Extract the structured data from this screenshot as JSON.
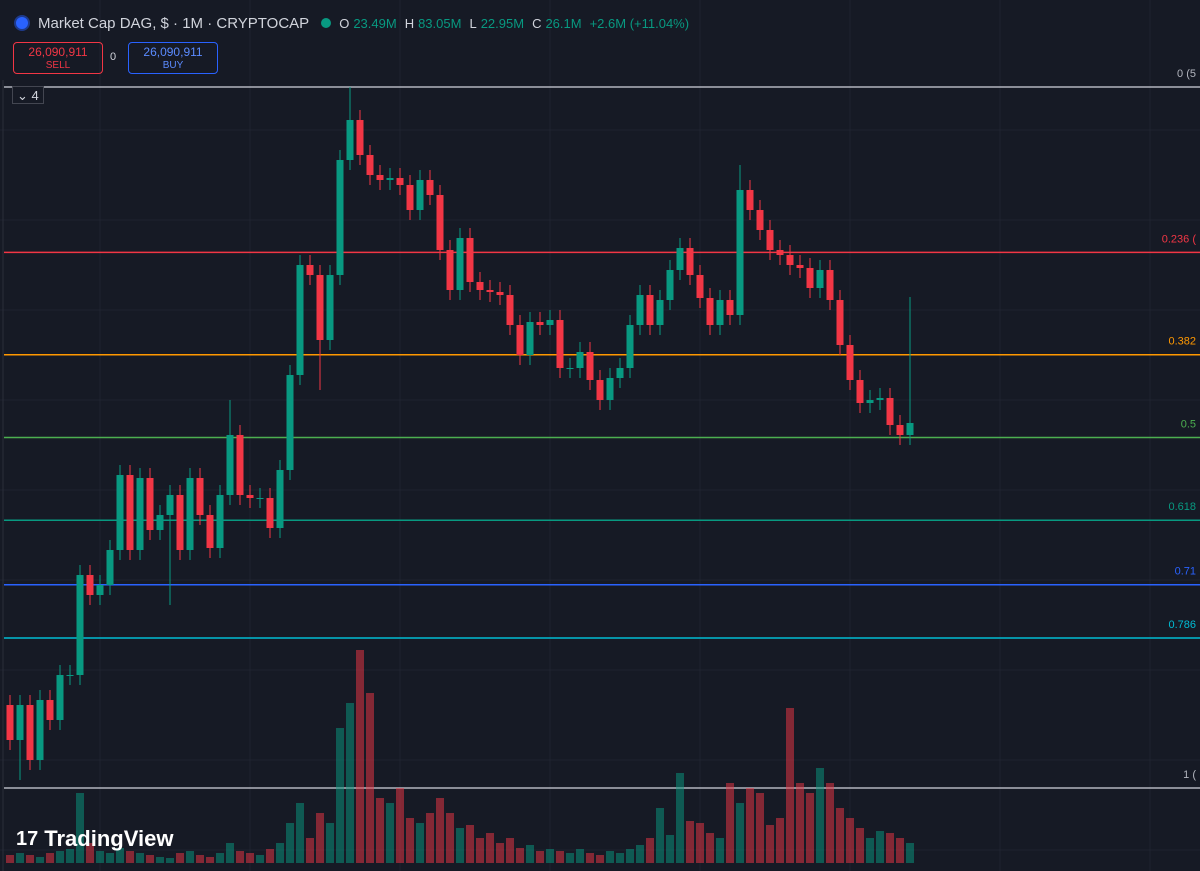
{
  "header": {
    "symbol": "Market Cap DAG, $ · 1M · CRYPTOCAP",
    "o_label": "O",
    "o": "23.49M",
    "h_label": "H",
    "h": "83.05M",
    "l_label": "L",
    "l": "22.95M",
    "c_label": "C",
    "c": "26.1M",
    "change": "+2.6M (+11.04%)"
  },
  "trade": {
    "sell_price": "26,090,911",
    "sell": "SELL",
    "spread": "0",
    "buy_price": "26,090,911",
    "buy": "BUY"
  },
  "indicators_count": "4",
  "logo": "TradingView",
  "chart_data": {
    "type": "candlestick",
    "ylim": [
      0,
      701
    ],
    "volume_lim": [
      0,
      220
    ],
    "up_color": "#089981",
    "down_color": "#f23645",
    "open": [
      83,
      48,
      83,
      28,
      88,
      68,
      113,
      113,
      213,
      193,
      203,
      238,
      313,
      238,
      310,
      258,
      273,
      293,
      238,
      310,
      273,
      240,
      293,
      353,
      293,
      290,
      290,
      260,
      318,
      413,
      523,
      513,
      448,
      513,
      628,
      668,
      633,
      613,
      608,
      610,
      603,
      578,
      608,
      593,
      538,
      498,
      550,
      506,
      498,
      496,
      493,
      463,
      433,
      466,
      463,
      468,
      420,
      420,
      436,
      408,
      388,
      410,
      420,
      463,
      493,
      463,
      488,
      518,
      540,
      513,
      490,
      463,
      488,
      473,
      598,
      578,
      558,
      538,
      533,
      523,
      520,
      500,
      518,
      488,
      443,
      408,
      385,
      388,
      390,
      363,
      353
    ],
    "high": [
      93,
      93,
      93,
      98,
      98,
      123,
      123,
      223,
      223,
      213,
      248,
      323,
      323,
      320,
      320,
      283,
      303,
      303,
      320,
      320,
      283,
      303,
      388,
      363,
      303,
      300,
      300,
      328,
      423,
      533,
      533,
      523,
      523,
      638,
      701,
      678,
      643,
      623,
      620,
      620,
      613,
      618,
      618,
      603,
      548,
      560,
      560,
      516,
      508,
      506,
      503,
      473,
      476,
      476,
      478,
      478,
      430,
      446,
      446,
      418,
      420,
      430,
      473,
      503,
      503,
      498,
      528,
      550,
      550,
      523,
      500,
      498,
      498,
      623,
      608,
      588,
      568,
      548,
      543,
      533,
      530,
      528,
      528,
      498,
      453,
      418,
      398,
      400,
      400,
      373,
      491
    ],
    "low": [
      38,
      8,
      18,
      18,
      58,
      58,
      103,
      103,
      183,
      183,
      193,
      228,
      228,
      228,
      248,
      248,
      183,
      228,
      228,
      263,
      230,
      230,
      283,
      283,
      280,
      280,
      250,
      250,
      308,
      403,
      503,
      398,
      438,
      503,
      618,
      623,
      603,
      598,
      598,
      593,
      568,
      568,
      583,
      528,
      488,
      488,
      496,
      488,
      486,
      483,
      453,
      423,
      423,
      453,
      453,
      410,
      410,
      410,
      398,
      378,
      378,
      400,
      410,
      453,
      453,
      453,
      478,
      508,
      503,
      480,
      453,
      453,
      463,
      463,
      568,
      548,
      528,
      523,
      513,
      510,
      490,
      490,
      478,
      433,
      398,
      375,
      375,
      378,
      353,
      343,
      343
    ],
    "close": [
      48,
      83,
      28,
      88,
      68,
      113,
      113,
      213,
      193,
      203,
      238,
      313,
      238,
      310,
      258,
      273,
      293,
      238,
      310,
      273,
      240,
      293,
      353,
      293,
      290,
      290,
      260,
      318,
      413,
      523,
      513,
      448,
      513,
      628,
      668,
      633,
      613,
      608,
      610,
      603,
      578,
      608,
      593,
      538,
      498,
      550,
      506,
      498,
      496,
      493,
      463,
      433,
      466,
      463,
      468,
      420,
      420,
      436,
      408,
      388,
      410,
      420,
      463,
      493,
      463,
      488,
      518,
      540,
      513,
      490,
      463,
      488,
      473,
      598,
      578,
      558,
      538,
      533,
      523,
      520,
      500,
      518,
      488,
      443,
      408,
      385,
      388,
      390,
      363,
      353,
      365
    ],
    "volume": [
      8,
      10,
      8,
      6,
      10,
      12,
      14,
      70,
      20,
      12,
      10,
      15,
      12,
      10,
      8,
      6,
      5,
      10,
      12,
      8,
      6,
      10,
      20,
      12,
      10,
      8,
      14,
      20,
      40,
      60,
      25,
      50,
      40,
      135,
      160,
      213,
      170,
      65,
      60,
      75,
      45,
      40,
      50,
      65,
      50,
      35,
      38,
      25,
      30,
      20,
      25,
      15,
      18,
      12,
      14,
      12,
      10,
      14,
      10,
      8,
      12,
      10,
      14,
      18,
      25,
      55,
      28,
      90,
      42,
      40,
      30,
      25,
      80,
      60,
      75,
      70,
      38,
      45,
      155,
      80,
      70,
      95,
      80,
      55,
      45,
      35,
      25,
      32,
      30,
      25,
      20
    ],
    "fib_levels": [
      {
        "value": 0,
        "label": "0 (5",
        "color": "#b2b5be"
      },
      {
        "value": 0.236,
        "label": "0.236 (",
        "color": "#f23645"
      },
      {
        "value": 0.382,
        "label": "0.382",
        "color": "#ff9800"
      },
      {
        "value": 0.5,
        "label": "0.5",
        "color": "#4caf50"
      },
      {
        "value": 0.618,
        "label": "0.618",
        "color": "#089981"
      },
      {
        "value": 0.71,
        "label": "0.71",
        "color": "#2962ff"
      },
      {
        "value": 0.786,
        "label": "0.786",
        "color": "#00bcd4"
      },
      {
        "value": 1,
        "label": "1 (",
        "color": "#b2b5be"
      }
    ]
  }
}
